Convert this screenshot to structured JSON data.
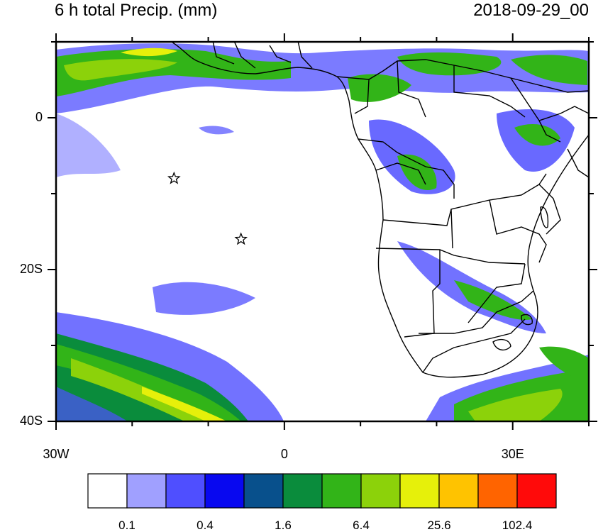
{
  "title_left": "6 h total Precip. (mm)",
  "title_right": "2018-09-29_00",
  "map": {
    "lon_range": [
      -30,
      40
    ],
    "lat_range": [
      -40,
      10
    ],
    "y_ticks": [
      {
        "lat": 0,
        "label": "0"
      },
      {
        "lat": -20,
        "label": "20S"
      },
      {
        "lat": -40,
        "label": "40S"
      }
    ],
    "x_ticks": [
      {
        "lon": -30,
        "label": "30W"
      },
      {
        "lon": 0,
        "label": "0"
      },
      {
        "lon": 30,
        "label": "30E"
      }
    ],
    "markers": [
      {
        "name": "station-1",
        "lon": -14.5,
        "lat": -8.0,
        "symbol": "star"
      },
      {
        "name": "station-2",
        "lon": -5.7,
        "lat": -16.0,
        "symbol": "star"
      }
    ]
  },
  "colorbar": {
    "colors": [
      "#ffffff",
      "#a0a0ff",
      "#4f4fff",
      "#0808f0",
      "#08508c",
      "#0a8c3c",
      "#32b418",
      "#8cd20a",
      "#e6f00a",
      "#ffc300",
      "#ff6400",
      "#ff0a0a"
    ],
    "labels": [
      "0.1",
      "0.4",
      "1.6",
      "6.4",
      "25.6",
      "102.4"
    ]
  },
  "colors": {
    "light_blue": "#a0a0ff",
    "blue": "#4f4fff",
    "dark_blue": "#0808f0",
    "green": "#32b418",
    "yellow_green": "#8cd20a",
    "yellow": "#e6f00a"
  }
}
